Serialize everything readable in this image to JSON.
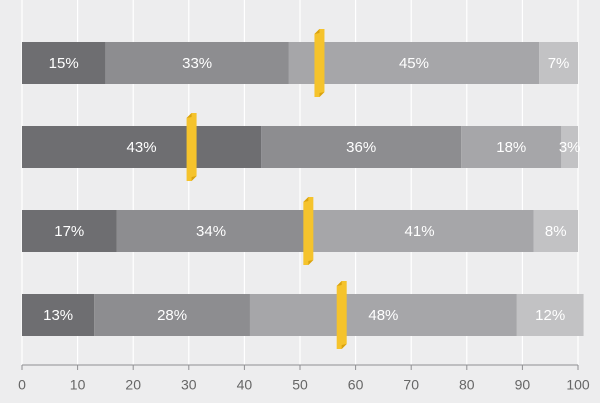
{
  "chart_data": {
    "type": "bar",
    "orientation": "horizontal",
    "stacked": true,
    "title": "",
    "xlabel": "",
    "ylabel": "",
    "xlim": [
      0,
      100
    ],
    "x_ticks": [
      0,
      10,
      20,
      30,
      40,
      50,
      60,
      70,
      80,
      90,
      100
    ],
    "grid": true,
    "rows": [
      {
        "values": [
          15,
          33,
          45,
          7
        ],
        "labels": [
          "15%",
          "33%",
          "45%",
          "7%"
        ],
        "marker": 53.5
      },
      {
        "values": [
          43,
          36,
          18,
          3
        ],
        "labels": [
          "43%",
          "36%",
          "18%",
          "3%"
        ],
        "marker": 30.5
      },
      {
        "values": [
          17,
          34,
          41,
          8
        ],
        "labels": [
          "17%",
          "34%",
          "41%",
          "8%"
        ],
        "marker": 51.5
      },
      {
        "values": [
          13,
          28,
          48,
          12
        ],
        "labels": [
          "13%",
          "28%",
          "48%",
          "12%"
        ],
        "marker": 57.5
      }
    ],
    "segment_colors": [
      "#6e6e71",
      "#8d8d90",
      "#a6a6a9",
      "#c2c2c4"
    ],
    "marker_color": "#f5c32c",
    "marker_shadow_color": "#d9a20f"
  }
}
